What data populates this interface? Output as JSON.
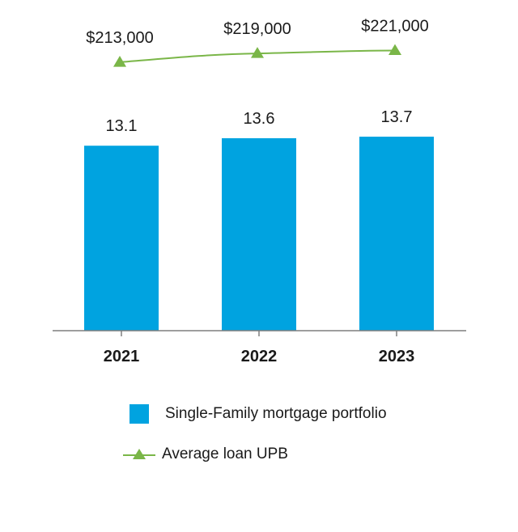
{
  "chart_data": {
    "type": "bar",
    "categories": [
      "2021",
      "2022",
      "2023"
    ],
    "series": [
      {
        "name": "Single-Family mortgage portfolio",
        "type": "bar",
        "values": [
          13.1,
          13.6,
          13.7
        ],
        "labels": [
          "13.1",
          "13.6",
          "13.7"
        ],
        "color": "#00a3e0"
      },
      {
        "name": "Average loan UPB",
        "type": "line",
        "marker": "triangle",
        "values": [
          213000,
          219000,
          221000
        ],
        "labels": [
          "$213,000",
          "$219,000",
          "$221,000"
        ],
        "color": "#7ab648"
      }
    ],
    "title": "",
    "xlabel": "",
    "ylabel": "",
    "grid": false,
    "legend_placement": "bottom"
  }
}
